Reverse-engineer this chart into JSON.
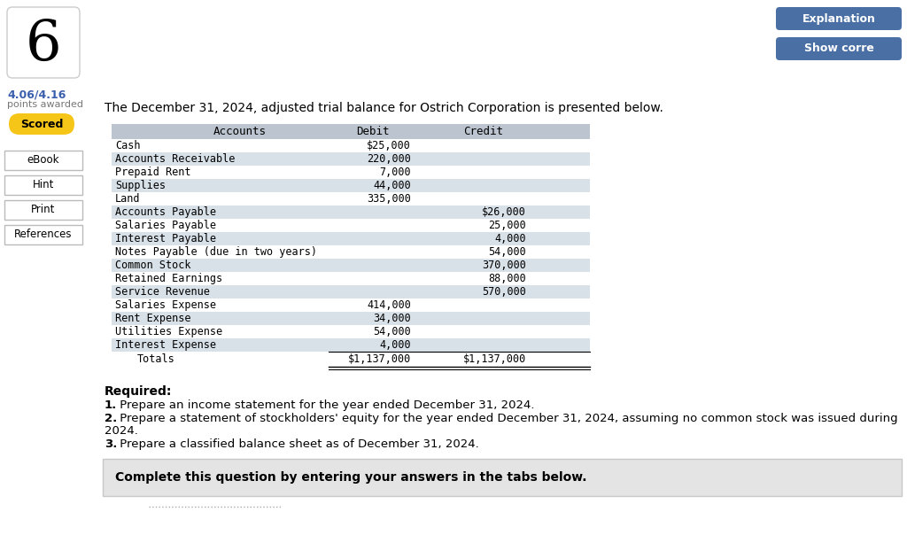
{
  "title_text": "The December 31, 2024, adjusted trial balance for Ostrich Corporation is presented below.",
  "question_number": "6",
  "score": "4.06/4.16",
  "score_label": "points awarded",
  "scored_label": "Scored",
  "table_header": [
    "Accounts",
    "Debit",
    "Credit"
  ],
  "table_rows": [
    [
      "Cash",
      "$25,000",
      ""
    ],
    [
      "Accounts Receivable",
      "220,000",
      ""
    ],
    [
      "Prepaid Rent",
      "7,000",
      ""
    ],
    [
      "Supplies",
      "44,000",
      ""
    ],
    [
      "Land",
      "335,000",
      ""
    ],
    [
      "Accounts Payable",
      "",
      "$26,000"
    ],
    [
      "Salaries Payable",
      "",
      "25,000"
    ],
    [
      "Interest Payable",
      "",
      "4,000"
    ],
    [
      "Notes Payable (due in two years)",
      "",
      "54,000"
    ],
    [
      "Common Stock",
      "",
      "370,000"
    ],
    [
      "Retained Earnings",
      "",
      "88,000"
    ],
    [
      "Service Revenue",
      "",
      "570,000"
    ],
    [
      "Salaries Expense",
      "414,000",
      ""
    ],
    [
      "Rent Expense",
      "34,000",
      ""
    ],
    [
      "Utilities Expense",
      "54,000",
      ""
    ],
    [
      "Interest Expense",
      "4,000",
      ""
    ]
  ],
  "totals_row": [
    "Totals",
    "$1,137,000",
    "$1,137,000"
  ],
  "required_text": "Required:",
  "required_items": [
    [
      "1.",
      " Prepare an income statement for the year ended December 31, 2024."
    ],
    [
      "2.",
      " Prepare a statement of stockholders' equity for the year ended December 31, 2024, assuming no common stock was issued during\n2024."
    ],
    [
      "3.",
      " Prepare a classified balance sheet as of December 31, 2024."
    ]
  ],
  "complete_text": "Complete this question by entering your answers in the tabs below.",
  "btn1_text": "Explanation",
  "btn2_text": "Show corre",
  "bg_color": "#ffffff",
  "table_header_bg": "#bcc5cf",
  "table_row_alt_bg": "#d8e0e8",
  "table_row_bg": "#ffffff",
  "scored_btn_color": "#f5c518",
  "btn_color": "#4a6fa5",
  "complete_box_bg": "#e4e4e4",
  "complete_box_border": "#c8c8c8"
}
